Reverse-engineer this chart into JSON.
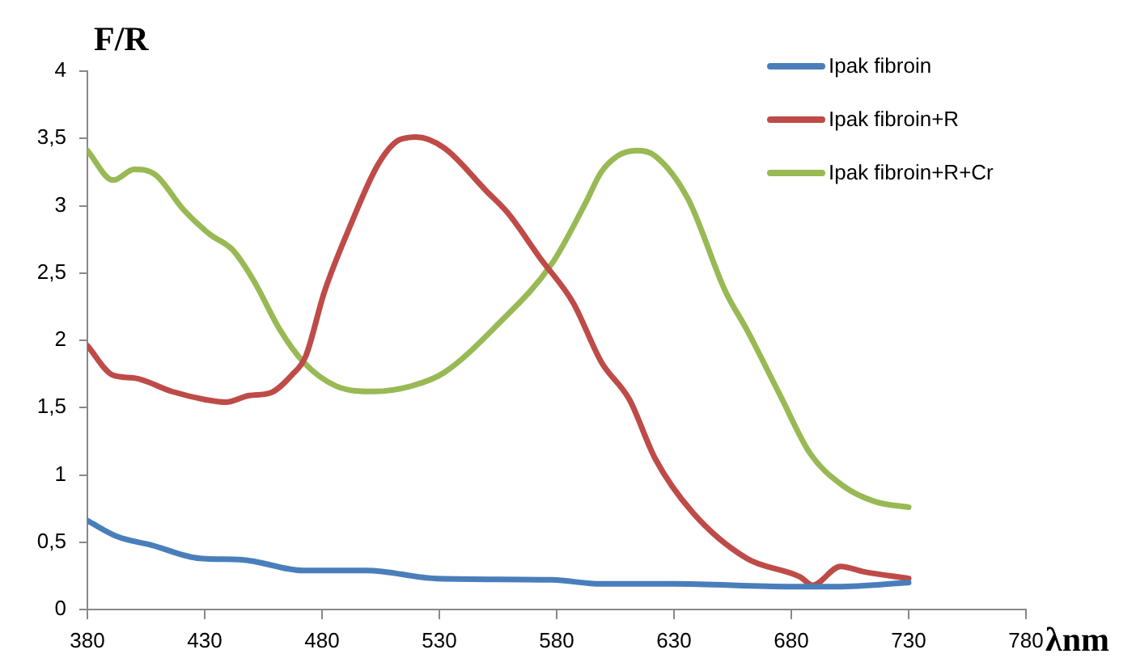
{
  "chart_data": {
    "type": "line",
    "xlabel": "λnm",
    "ylabel": "F/R",
    "xlim": [
      380,
      780
    ],
    "xticks": [
      380,
      430,
      480,
      530,
      580,
      630,
      680,
      730,
      780
    ],
    "ylim": [
      0,
      4
    ],
    "yticks": [
      0,
      {
        "value": 0.5,
        "label": "0,5"
      },
      1,
      {
        "value": 1.5,
        "label": "1,5"
      },
      2,
      {
        "value": 2.5,
        "label": "2,5"
      },
      3,
      {
        "value": 3.5,
        "label": "3,5"
      },
      4
    ],
    "grid": false,
    "legend": "top right",
    "marker": "none",
    "line_style": "solid",
    "series": [
      {
        "name": "Ipak fibroin",
        "color": "#4a7ebb",
        "x": [
          380,
          393,
          407,
          428,
          446,
          472,
          499,
          529,
          578,
          599,
          630,
          680,
          700,
          730
        ],
        "values": [
          0.66,
          0.54,
          0.48,
          0.38,
          0.37,
          0.29,
          0.29,
          0.23,
          0.22,
          0.19,
          0.19,
          0.17,
          0.17,
          0.2
        ]
      },
      {
        "name": "Ipak fibroin+R",
        "color": "#be4b48",
        "x": [
          380,
          391,
          400,
          416,
          430,
          439,
          449,
          458,
          467,
          473,
          481,
          492,
          504,
          513,
          520,
          532,
          550,
          559,
          573,
          587,
          599,
          611,
          622,
          638,
          661,
          684,
          689,
          701,
          711,
          730
        ],
        "values": [
          1.96,
          1.74,
          1.72,
          1.62,
          1.56,
          1.54,
          1.59,
          1.61,
          1.74,
          1.88,
          2.36,
          2.85,
          3.31,
          3.49,
          3.51,
          3.43,
          3.11,
          2.95,
          2.61,
          2.28,
          1.84,
          1.56,
          1.12,
          0.72,
          0.38,
          0.24,
          0.18,
          0.32,
          0.28,
          0.23
        ]
      },
      {
        "name": "Ipak fibroin+R+Cr",
        "color": "#98b954",
        "x": [
          380,
          391,
          400,
          409,
          421,
          432,
          442,
          451,
          462,
          472,
          486,
          502,
          518,
          532,
          555,
          578,
          592,
          599,
          606,
          614,
          622,
          636,
          652,
          661,
          675,
          688,
          702,
          716,
          730
        ],
        "values": [
          3.41,
          3.19,
          3.27,
          3.23,
          2.97,
          2.79,
          2.67,
          2.44,
          2.08,
          1.84,
          1.66,
          1.62,
          1.66,
          1.76,
          2.12,
          2.57,
          3.01,
          3.25,
          3.37,
          3.41,
          3.37,
          3.05,
          2.36,
          2.08,
          1.6,
          1.16,
          0.92,
          0.8,
          0.76
        ]
      }
    ]
  }
}
